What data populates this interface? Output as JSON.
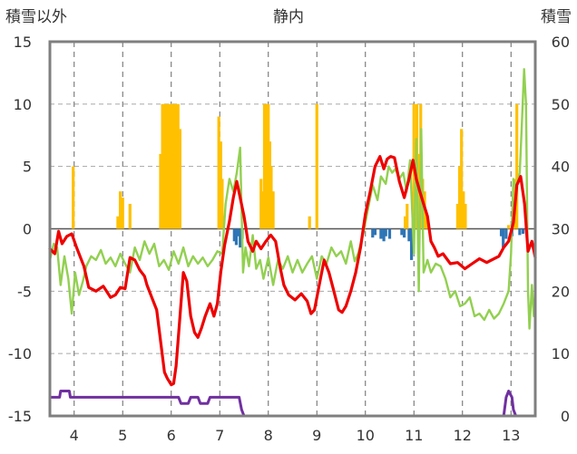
{
  "chart_data": {
    "type": "line",
    "title": "静内",
    "ylabel": "積雪以外",
    "y2label": "積雪",
    "ylim": [
      -15,
      15
    ],
    "yticks": [
      -15,
      -10,
      -5,
      0,
      5,
      10,
      15
    ],
    "y2lim": [
      0,
      60
    ],
    "y2ticks": [
      0,
      10,
      20,
      30,
      40,
      50,
      60
    ],
    "xlim": [
      3.5,
      13.5
    ],
    "xticks": [
      4,
      5,
      6,
      7,
      8,
      9,
      10,
      11,
      12,
      13
    ],
    "grid": true,
    "colors": {
      "temperature": "#ee0000",
      "green": "#92d050",
      "snow_depth": "#7030a0",
      "bars_positive": "#ffc000",
      "bars_negative": "#2e75b6",
      "frame": "#7f7f7f"
    },
    "series": [
      {
        "color": "#ee0000",
        "axis": "left",
        "points": [
          [
            3.5,
            -1.6
          ],
          [
            3.6,
            -2.0
          ],
          [
            3.68,
            -0.2
          ],
          [
            3.75,
            -1.2
          ],
          [
            3.85,
            -0.6
          ],
          [
            3.95,
            -0.4
          ],
          [
            4.05,
            -1.5
          ],
          [
            4.2,
            -3.0
          ],
          [
            4.3,
            -4.7
          ],
          [
            4.45,
            -5.0
          ],
          [
            4.6,
            -4.6
          ],
          [
            4.75,
            -5.5
          ],
          [
            4.85,
            -5.3
          ],
          [
            4.95,
            -4.7
          ],
          [
            5.05,
            -4.8
          ],
          [
            5.15,
            -2.3
          ],
          [
            5.25,
            -2.5
          ],
          [
            5.35,
            -3.3
          ],
          [
            5.45,
            -3.8
          ],
          [
            5.5,
            -4.5
          ],
          [
            5.6,
            -5.5
          ],
          [
            5.7,
            -6.5
          ],
          [
            5.78,
            -9.0
          ],
          [
            5.86,
            -11.5
          ],
          [
            5.92,
            -12.0
          ],
          [
            6.0,
            -12.5
          ],
          [
            6.05,
            -12.4
          ],
          [
            6.1,
            -11.0
          ],
          [
            6.18,
            -7.0
          ],
          [
            6.25,
            -3.5
          ],
          [
            6.32,
            -4.2
          ],
          [
            6.4,
            -7.0
          ],
          [
            6.48,
            -8.3
          ],
          [
            6.55,
            -8.7
          ],
          [
            6.62,
            -8.0
          ],
          [
            6.7,
            -7.0
          ],
          [
            6.8,
            -6.0
          ],
          [
            6.88,
            -7.0
          ],
          [
            6.95,
            -6.0
          ],
          [
            7.02,
            -3.5
          ],
          [
            7.1,
            -1.3
          ],
          [
            7.2,
            0.6
          ],
          [
            7.28,
            2.5
          ],
          [
            7.35,
            3.8
          ],
          [
            7.42,
            2.5
          ],
          [
            7.5,
            1.0
          ],
          [
            7.58,
            -1.0
          ],
          [
            7.68,
            -1.8
          ],
          [
            7.75,
            -1.0
          ],
          [
            7.85,
            -1.6
          ],
          [
            7.95,
            -1.0
          ],
          [
            8.05,
            -0.5
          ],
          [
            8.15,
            -1.0
          ],
          [
            8.25,
            -3.2
          ],
          [
            8.32,
            -4.5
          ],
          [
            8.42,
            -5.3
          ],
          [
            8.55,
            -5.7
          ],
          [
            8.68,
            -5.2
          ],
          [
            8.8,
            -5.8
          ],
          [
            8.88,
            -6.8
          ],
          [
            8.95,
            -6.5
          ],
          [
            9.05,
            -4.5
          ],
          [
            9.15,
            -2.5
          ],
          [
            9.25,
            -3.5
          ],
          [
            9.35,
            -5.0
          ],
          [
            9.45,
            -6.5
          ],
          [
            9.52,
            -6.7
          ],
          [
            9.6,
            -6.2
          ],
          [
            9.7,
            -5.0
          ],
          [
            9.8,
            -3.5
          ],
          [
            9.9,
            -1.5
          ],
          [
            10.0,
            1.2
          ],
          [
            10.1,
            3.0
          ],
          [
            10.2,
            5.0
          ],
          [
            10.3,
            5.8
          ],
          [
            10.38,
            4.8
          ],
          [
            10.45,
            5.6
          ],
          [
            10.52,
            5.8
          ],
          [
            10.6,
            5.7
          ],
          [
            10.7,
            3.8
          ],
          [
            10.8,
            2.5
          ],
          [
            10.9,
            4.0
          ],
          [
            10.98,
            5.5
          ],
          [
            11.05,
            4.0
          ],
          [
            11.12,
            3.0
          ],
          [
            11.2,
            2.0
          ],
          [
            11.28,
            1.0
          ],
          [
            11.35,
            -1.0
          ],
          [
            11.42,
            -1.5
          ],
          [
            11.5,
            -2.2
          ],
          [
            11.6,
            -2.0
          ],
          [
            11.75,
            -2.8
          ],
          [
            11.9,
            -2.7
          ],
          [
            12.05,
            -3.2
          ],
          [
            12.2,
            -2.8
          ],
          [
            12.35,
            -2.4
          ],
          [
            12.5,
            -2.7
          ],
          [
            12.6,
            -2.5
          ],
          [
            12.75,
            -2.2
          ],
          [
            12.85,
            -1.5
          ],
          [
            12.95,
            -1.0
          ],
          [
            13.05,
            0.5
          ],
          [
            13.12,
            3.5
          ],
          [
            13.2,
            4.2
          ],
          [
            13.28,
            2.0
          ],
          [
            13.35,
            -1.8
          ],
          [
            13.43,
            -1.0
          ],
          [
            13.5,
            -2.3
          ]
        ]
      },
      {
        "color": "#92d050",
        "axis": "left",
        "points": [
          [
            3.5,
            -2.5
          ],
          [
            3.58,
            -1.2
          ],
          [
            3.65,
            -1.5
          ],
          [
            3.72,
            -4.5
          ],
          [
            3.8,
            -2.2
          ],
          [
            3.88,
            -4.0
          ],
          [
            3.95,
            -6.8
          ],
          [
            4.02,
            -3.5
          ],
          [
            4.1,
            -5.3
          ],
          [
            4.18,
            -4.2
          ],
          [
            4.25,
            -3.0
          ],
          [
            4.35,
            -2.2
          ],
          [
            4.45,
            -2.5
          ],
          [
            4.55,
            -1.7
          ],
          [
            4.65,
            -2.8
          ],
          [
            4.75,
            -2.3
          ],
          [
            4.85,
            -3.0
          ],
          [
            4.95,
            -2.0
          ],
          [
            5.05,
            -2.8
          ],
          [
            5.15,
            -3.5
          ],
          [
            5.25,
            -1.5
          ],
          [
            5.35,
            -2.5
          ],
          [
            5.45,
            -1.0
          ],
          [
            5.55,
            -2.0
          ],
          [
            5.65,
            -1.2
          ],
          [
            5.75,
            -3.0
          ],
          [
            5.85,
            -2.5
          ],
          [
            5.95,
            -3.3
          ],
          [
            6.05,
            -1.8
          ],
          [
            6.15,
            -2.8
          ],
          [
            6.25,
            -1.5
          ],
          [
            6.35,
            -3.0
          ],
          [
            6.45,
            -2.2
          ],
          [
            6.55,
            -2.8
          ],
          [
            6.65,
            -2.3
          ],
          [
            6.75,
            -3.0
          ],
          [
            6.85,
            -2.5
          ],
          [
            6.95,
            -1.8
          ],
          [
            7.05,
            -2.0
          ],
          [
            7.12,
            2.0
          ],
          [
            7.2,
            4.0
          ],
          [
            7.28,
            3.0
          ],
          [
            7.35,
            4.5
          ],
          [
            7.42,
            6.5
          ],
          [
            7.48,
            -3.5
          ],
          [
            7.53,
            -1.5
          ],
          [
            7.6,
            -3.0
          ],
          [
            7.68,
            -0.5
          ],
          [
            7.75,
            -3.2
          ],
          [
            7.83,
            -2.5
          ],
          [
            7.9,
            -4.0
          ],
          [
            8.0,
            -2.3
          ],
          [
            8.1,
            -4.5
          ],
          [
            8.2,
            -2.5
          ],
          [
            8.3,
            -3.2
          ],
          [
            8.4,
            -2.2
          ],
          [
            8.5,
            -3.5
          ],
          [
            8.6,
            -2.5
          ],
          [
            8.7,
            -3.5
          ],
          [
            8.8,
            -2.8
          ],
          [
            8.9,
            -2.2
          ],
          [
            9.0,
            -4.0
          ],
          [
            9.1,
            -2.2
          ],
          [
            9.2,
            -2.8
          ],
          [
            9.3,
            -1.5
          ],
          [
            9.4,
            -2.2
          ],
          [
            9.5,
            -1.8
          ],
          [
            9.6,
            -2.8
          ],
          [
            9.7,
            -1.0
          ],
          [
            9.78,
            -2.6
          ],
          [
            9.85,
            -2.0
          ],
          [
            9.95,
            -0.5
          ],
          [
            10.05,
            1.5
          ],
          [
            10.15,
            3.5
          ],
          [
            10.25,
            2.3
          ],
          [
            10.32,
            4.2
          ],
          [
            10.42,
            3.6
          ],
          [
            10.48,
            5.0
          ],
          [
            10.55,
            4.5
          ],
          [
            10.62,
            4.8
          ],
          [
            10.7,
            4.0
          ],
          [
            10.78,
            4.5
          ],
          [
            10.85,
            3.0
          ],
          [
            10.92,
            5.5
          ],
          [
            11.0,
            -2.0
          ],
          [
            11.05,
            7.2
          ],
          [
            11.1,
            -5.0
          ],
          [
            11.15,
            8.0
          ],
          [
            11.2,
            -3.5
          ],
          [
            11.28,
            -2.5
          ],
          [
            11.35,
            -3.5
          ],
          [
            11.45,
            -2.8
          ],
          [
            11.55,
            -3.0
          ],
          [
            11.65,
            -4.0
          ],
          [
            11.75,
            -5.5
          ],
          [
            11.85,
            -5.0
          ],
          [
            11.95,
            -6.2
          ],
          [
            12.05,
            -6.0
          ],
          [
            12.15,
            -5.5
          ],
          [
            12.25,
            -7.0
          ],
          [
            12.35,
            -6.8
          ],
          [
            12.45,
            -7.3
          ],
          [
            12.55,
            -6.5
          ],
          [
            12.65,
            -7.2
          ],
          [
            12.75,
            -6.8
          ],
          [
            12.85,
            -6.0
          ],
          [
            12.95,
            -5.0
          ],
          [
            13.0,
            -2.0
          ],
          [
            13.05,
            4.0
          ],
          [
            13.1,
            3.2
          ],
          [
            13.18,
            4.5
          ],
          [
            13.22,
            8.0
          ],
          [
            13.27,
            12.8
          ],
          [
            13.31,
            10.0
          ],
          [
            13.35,
            -5.0
          ],
          [
            13.38,
            -8.0
          ],
          [
            13.43,
            -4.5
          ],
          [
            13.47,
            -7.0
          ],
          [
            13.5,
            -6.0
          ]
        ]
      },
      {
        "color": "#7030a0",
        "axis": "right",
        "points": [
          [
            3.5,
            3
          ],
          [
            3.7,
            3
          ],
          [
            3.72,
            4
          ],
          [
            3.9,
            4
          ],
          [
            3.92,
            3
          ],
          [
            5.5,
            3
          ],
          [
            6.15,
            3
          ],
          [
            6.2,
            2
          ],
          [
            6.35,
            2
          ],
          [
            6.4,
            3
          ],
          [
            6.55,
            3
          ],
          [
            6.6,
            2
          ],
          [
            6.75,
            2
          ],
          [
            6.8,
            3
          ],
          [
            7.4,
            3
          ],
          [
            7.45,
            1
          ],
          [
            7.5,
            0
          ],
          [
            12.85,
            0
          ],
          [
            12.9,
            3
          ],
          [
            12.95,
            4
          ],
          [
            13.02,
            3
          ],
          [
            13.05,
            1
          ],
          [
            13.1,
            0
          ],
          [
            13.5,
            0
          ]
        ]
      }
    ],
    "bars": [
      [
        3.98,
        5.0
      ],
      [
        4.9,
        1.0
      ],
      [
        4.95,
        3.0
      ],
      [
        5.0,
        2.5
      ],
      [
        5.15,
        2.0
      ],
      [
        5.78,
        6.0
      ],
      [
        5.82,
        10.0
      ],
      [
        5.86,
        10.0
      ],
      [
        5.9,
        10.0
      ],
      [
        5.94,
        10.0
      ],
      [
        5.98,
        10.0
      ],
      [
        6.02,
        10.0
      ],
      [
        6.06,
        10.0
      ],
      [
        6.1,
        10.0
      ],
      [
        6.14,
        10.0
      ],
      [
        6.18,
        8.0
      ],
      [
        6.98,
        9.0
      ],
      [
        7.02,
        7.0
      ],
      [
        7.05,
        4.0
      ],
      [
        7.3,
        -1.0
      ],
      [
        7.34,
        -1.3
      ],
      [
        7.38,
        -0.6
      ],
      [
        7.42,
        -1.5
      ],
      [
        7.46,
        -0.8
      ],
      [
        7.85,
        4.0
      ],
      [
        7.88,
        3.0
      ],
      [
        7.92,
        10.0
      ],
      [
        7.96,
        10.0
      ],
      [
        8.0,
        10.0
      ],
      [
        8.03,
        7.0
      ],
      [
        8.06,
        5.0
      ],
      [
        8.1,
        3.0
      ],
      [
        8.85,
        1.0
      ],
      [
        9.0,
        10.0
      ],
      [
        10.15,
        -0.7
      ],
      [
        10.2,
        -0.5
      ],
      [
        10.32,
        -0.8
      ],
      [
        10.38,
        -1.0
      ],
      [
        10.42,
        -0.6
      ],
      [
        10.5,
        -0.8
      ],
      [
        10.75,
        -0.5
      ],
      [
        10.8,
        -0.7
      ],
      [
        10.82,
        1.0
      ],
      [
        10.86,
        2.0
      ],
      [
        10.9,
        -1.0
      ],
      [
        10.95,
        -2.5
      ],
      [
        10.98,
        3.0
      ],
      [
        11.0,
        10.0
      ],
      [
        11.03,
        7.0
      ],
      [
        11.06,
        10.0
      ],
      [
        11.1,
        6.0
      ],
      [
        11.14,
        10.0
      ],
      [
        11.18,
        4.0
      ],
      [
        11.22,
        3.0
      ],
      [
        11.26,
        1.0
      ],
      [
        11.9,
        2.0
      ],
      [
        11.94,
        5.0
      ],
      [
        11.98,
        8.0
      ],
      [
        12.02,
        3.0
      ],
      [
        12.06,
        2.0
      ],
      [
        12.8,
        -0.6
      ],
      [
        12.84,
        -1.5
      ],
      [
        12.9,
        -0.8
      ],
      [
        12.95,
        0.3
      ],
      [
        13.02,
        -0.6
      ],
      [
        13.08,
        4.0
      ],
      [
        13.12,
        10.0
      ],
      [
        13.18,
        -0.5
      ],
      [
        13.25,
        -0.4
      ]
    ]
  }
}
